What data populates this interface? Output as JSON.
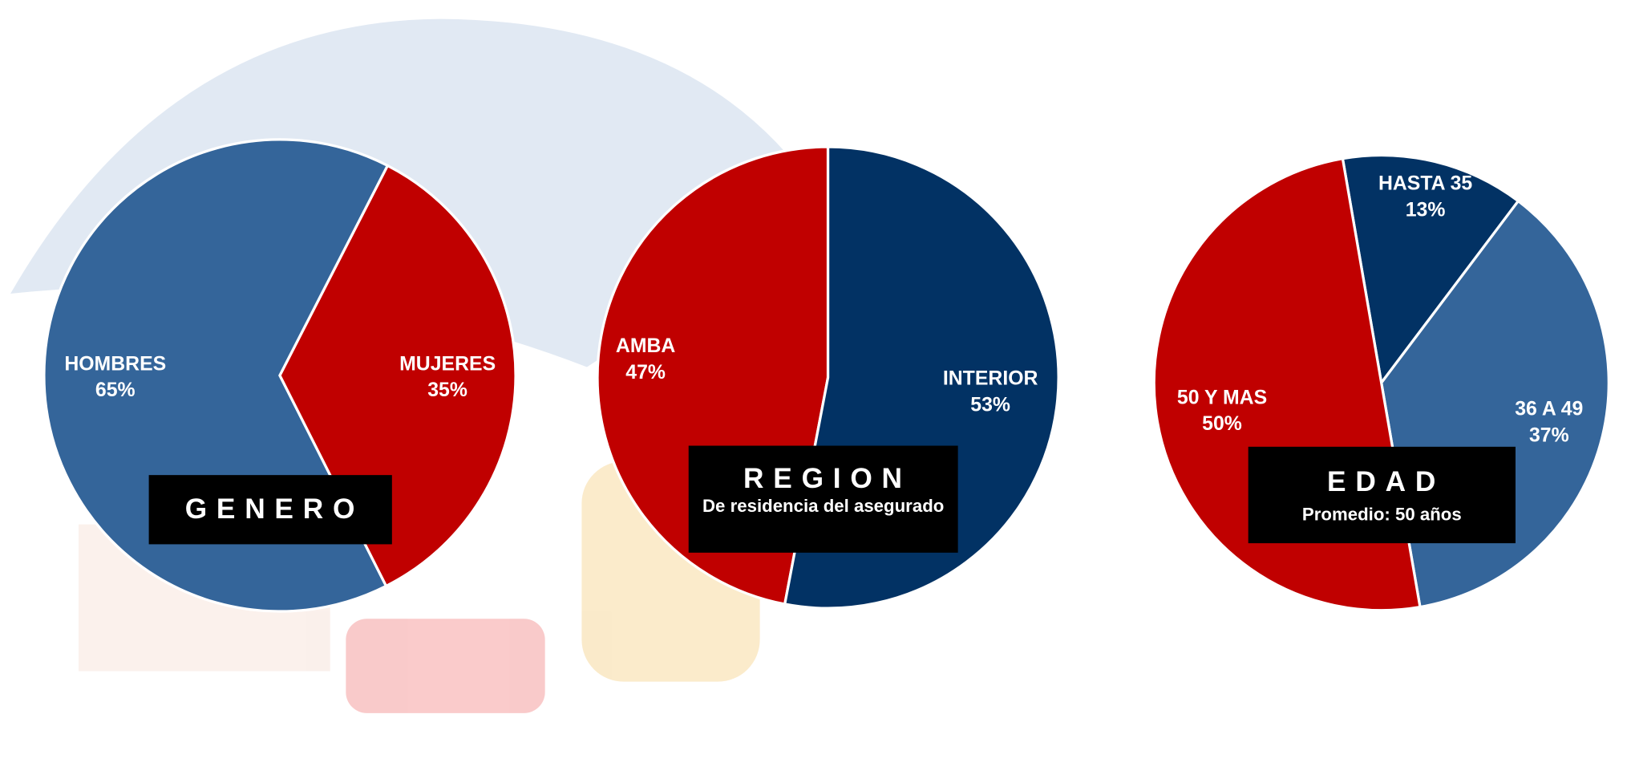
{
  "chart_data": [
    {
      "type": "pie",
      "title": "GENERO",
      "categories": [
        "HOMBRES",
        "MUJERES"
      ],
      "values": [
        65,
        35
      ],
      "value_labels": [
        "65%",
        "35%"
      ],
      "colors": [
        "#34659A",
        "#C00000"
      ]
    },
    {
      "type": "pie",
      "title": "REGION",
      "subtitle": "De residencia del asegurado",
      "categories": [
        "AMBA",
        "INTERIOR"
      ],
      "values": [
        47,
        53
      ],
      "value_labels": [
        "47%",
        "53%"
      ],
      "colors": [
        "#C00000",
        "#023264"
      ]
    },
    {
      "type": "pie",
      "title": "EDAD",
      "subtitle": "Promedio: 50 años",
      "categories": [
        "HASTA 35",
        "36 A 49",
        "50 Y MAS"
      ],
      "values": [
        13,
        37,
        50
      ],
      "value_labels": [
        "13%",
        "37%",
        "50%"
      ],
      "colors": [
        "#023264",
        "#34659A",
        "#C00000"
      ]
    }
  ]
}
